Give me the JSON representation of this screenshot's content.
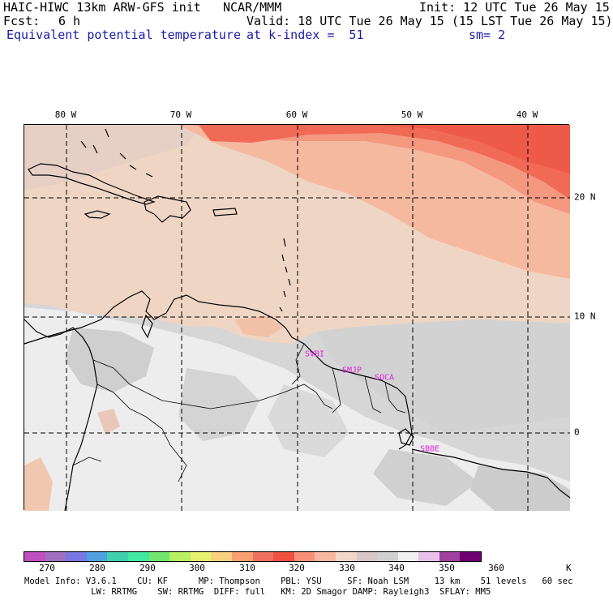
{
  "header": {
    "model_line": "HAIC-HIWC 13km ARW-GFS init",
    "org": "NCAR/MMM",
    "init_line": "Init: 12 UTC Tue 26 May 15",
    "fcst_label": "Fcst:",
    "fcst_value": "6 h",
    "valid_line": "Valid: 18 UTC Tue 26 May 15 (15 LST Tue 26 May 15)",
    "field_name": "Equivalent potential temperature",
    "level": "at k-index =  51",
    "smoothing": "sm= 2"
  },
  "map": {
    "lon_labels": [
      "80 W",
      "70 W",
      "60 W",
      "50 W",
      "40 W"
    ],
    "lat_labels": [
      "20 N",
      "10 N",
      "0"
    ],
    "stations": [
      "SVBI",
      "SMJP",
      "SOCA",
      "SBBE"
    ]
  },
  "colorbar": {
    "colors": [
      "#c050c0",
      "#a070c0",
      "#7878e0",
      "#50a0e0",
      "#40d0b0",
      "#40e8a0",
      "#70e870",
      "#b8f060",
      "#e8f070",
      "#f8d080",
      "#f8a070",
      "#f07060",
      "#f05040",
      "#f89078",
      "#f8b8a0",
      "#f0d8c8",
      "#d8c8c8",
      "#d0d0d0",
      "#f0f0f0",
      "#e8c0e8",
      "#a040a0",
      "#700070"
    ],
    "tick_labels": [
      "270",
      "280",
      "290",
      "300",
      "310",
      "320",
      "330",
      "340",
      "350",
      "360"
    ],
    "unit": "K"
  },
  "footer": {
    "line1": "Model Info: V3.6.1    CU: KF      MP: Thompson    PBL: YSU     SF: Noah LSM     13 km    51 levels   60 sec",
    "line2": "             LW: RRTMG    SW: RRTMG  DIFF: full   KM: 2D Smagor DAMP: Rayleigh3  SFLAY: MM5"
  }
}
